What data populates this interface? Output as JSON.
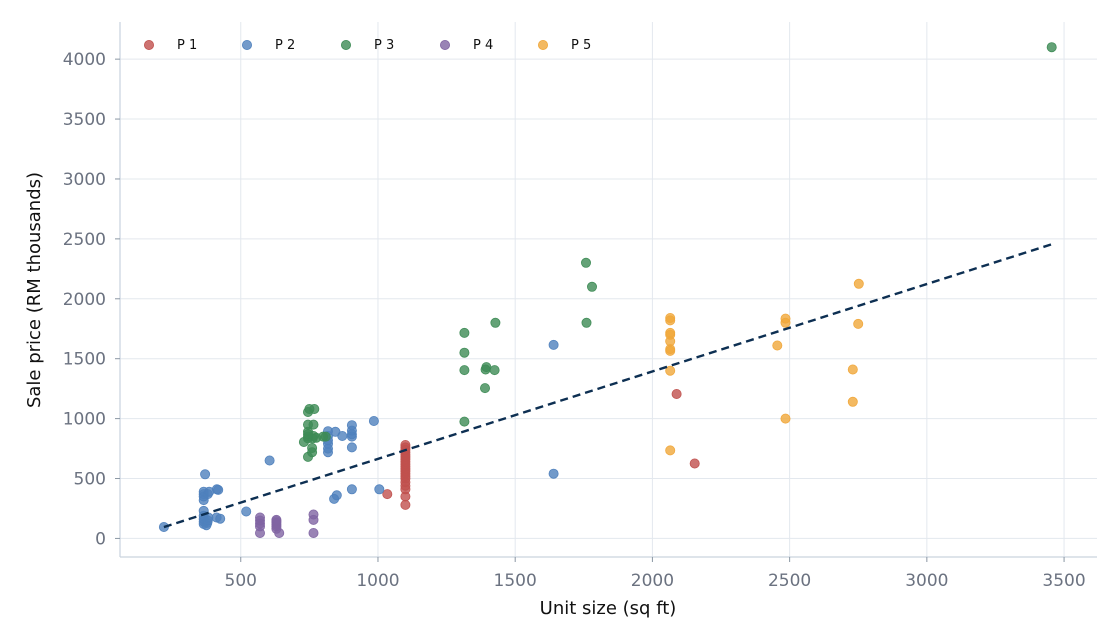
{
  "chart_data": {
    "type": "scatter",
    "xlabel": "Unit size (sq ft)",
    "ylabel": "Sale price (RM thousands)",
    "xlim": [
      60,
      3620
    ],
    "ylim": [
      -155,
      4310
    ],
    "x_ticks": [
      500,
      1000,
      1500,
      2000,
      2500,
      3000,
      3500
    ],
    "x_tick_labels": [
      "500",
      "1000",
      "1500",
      "2000",
      "2500",
      "3000",
      "3500"
    ],
    "y_ticks": [
      0,
      500,
      1000,
      1500,
      2000,
      2500,
      3000,
      3500,
      4000
    ],
    "y_tick_labels": [
      "0",
      "500",
      "1000",
      "1500",
      "2000",
      "2500",
      "3000",
      "3500",
      "4000"
    ],
    "grid": true,
    "legend_position": "top-left",
    "legend_layout": "horizontal",
    "series": [
      {
        "name": "P 1",
        "color": "#c0504d",
        "points": [
          [
            1034,
            370
          ],
          [
            1100,
            280
          ],
          [
            1100,
            350
          ],
          [
            1100,
            410
          ],
          [
            1100,
            440
          ],
          [
            1100,
            470
          ],
          [
            1100,
            500
          ],
          [
            1100,
            520
          ],
          [
            1100,
            540
          ],
          [
            1100,
            560
          ],
          [
            1100,
            580
          ],
          [
            1100,
            600
          ],
          [
            1100,
            620
          ],
          [
            1100,
            640
          ],
          [
            1100,
            660
          ],
          [
            1100,
            680
          ],
          [
            1100,
            700
          ],
          [
            1100,
            720
          ],
          [
            1100,
            740
          ],
          [
            1100,
            760
          ],
          [
            1100,
            780
          ],
          [
            2088,
            1205
          ],
          [
            2154,
            625
          ]
        ]
      },
      {
        "name": "P 2",
        "color": "#4f81bd",
        "points": [
          [
            220,
            95
          ],
          [
            365,
            120
          ],
          [
            365,
            140
          ],
          [
            365,
            160
          ],
          [
            365,
            190
          ],
          [
            365,
            230
          ],
          [
            365,
            320
          ],
          [
            365,
            350
          ],
          [
            365,
            370
          ],
          [
            365,
            390
          ],
          [
            370,
            535
          ],
          [
            375,
            110
          ],
          [
            378,
            130
          ],
          [
            380,
            150
          ],
          [
            382,
            175
          ],
          [
            380,
            370
          ],
          [
            385,
            390
          ],
          [
            412,
            175
          ],
          [
            413,
            410
          ],
          [
            418,
            405
          ],
          [
            425,
            165
          ],
          [
            520,
            225
          ],
          [
            605,
            650
          ],
          [
            818,
            720
          ],
          [
            818,
            750
          ],
          [
            818,
            790
          ],
          [
            818,
            820
          ],
          [
            818,
            855
          ],
          [
            818,
            895
          ],
          [
            840,
            330
          ],
          [
            845,
            890
          ],
          [
            850,
            360
          ],
          [
            870,
            855
          ],
          [
            905,
            410
          ],
          [
            905,
            760
          ],
          [
            905,
            850
          ],
          [
            905,
            870
          ],
          [
            905,
            900
          ],
          [
            905,
            945
          ],
          [
            985,
            980
          ],
          [
            1005,
            410
          ],
          [
            1640,
            1615
          ],
          [
            1640,
            540
          ]
        ]
      },
      {
        "name": "P 3",
        "color": "#3d8b55",
        "points": [
          [
            730,
            805
          ],
          [
            745,
            680
          ],
          [
            745,
            835
          ],
          [
            745,
            850
          ],
          [
            745,
            870
          ],
          [
            745,
            890
          ],
          [
            745,
            950
          ],
          [
            745,
            1055
          ],
          [
            750,
            1080
          ],
          [
            760,
            720
          ],
          [
            760,
            755
          ],
          [
            762,
            835
          ],
          [
            765,
            855
          ],
          [
            765,
            950
          ],
          [
            768,
            1080
          ],
          [
            775,
            840
          ],
          [
            800,
            850
          ],
          [
            810,
            850
          ],
          [
            1315,
            975
          ],
          [
            1315,
            1405
          ],
          [
            1315,
            1550
          ],
          [
            1315,
            1715
          ],
          [
            1390,
            1255
          ],
          [
            1392,
            1410
          ],
          [
            1395,
            1430
          ],
          [
            1425,
            1405
          ],
          [
            1428,
            1800
          ],
          [
            1758,
            2300
          ],
          [
            1760,
            1800
          ],
          [
            1780,
            2100
          ],
          [
            3455,
            4100
          ]
        ]
      },
      {
        "name": "P 4",
        "color": "#8064a2",
        "points": [
          [
            570,
            45
          ],
          [
            570,
            100
          ],
          [
            570,
            125
          ],
          [
            570,
            150
          ],
          [
            570,
            175
          ],
          [
            630,
            80
          ],
          [
            630,
            100
          ],
          [
            630,
            115
          ],
          [
            630,
            130
          ],
          [
            630,
            145
          ],
          [
            630,
            155
          ],
          [
            640,
            45
          ],
          [
            765,
            45
          ],
          [
            765,
            155
          ],
          [
            765,
            200
          ]
        ]
      },
      {
        "name": "P 5",
        "color": "#f0a73a",
        "points": [
          [
            2065,
            735
          ],
          [
            2065,
            1400
          ],
          [
            2065,
            1565
          ],
          [
            2065,
            1580
          ],
          [
            2065,
            1645
          ],
          [
            2065,
            1700
          ],
          [
            2065,
            1715
          ],
          [
            2065,
            1820
          ],
          [
            2065,
            1840
          ],
          [
            2455,
            1610
          ],
          [
            2485,
            1000
          ],
          [
            2485,
            1800
          ],
          [
            2485,
            1835
          ],
          [
            2730,
            1140
          ],
          [
            2730,
            1410
          ],
          [
            2750,
            1790
          ],
          [
            2752,
            2125
          ]
        ]
      }
    ],
    "trend_line": {
      "style": "dashed",
      "color": "#0d2f52",
      "from": [
        220,
        95
      ],
      "to": [
        3455,
        2455
      ]
    }
  }
}
